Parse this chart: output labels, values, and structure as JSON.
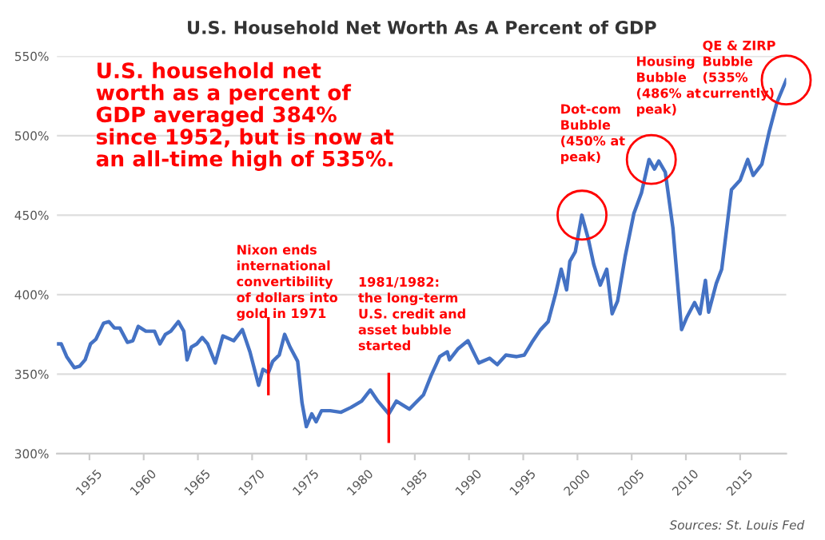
{
  "chart_data": {
    "type": "line",
    "title": "U.S. Household Net Worth As A Percent of GDP",
    "x": [
      1952.0,
      1952.4,
      1952.9,
      1953.6,
      1954.1,
      1954.6,
      1955.1,
      1955.6,
      1956.3,
      1956.8,
      1957.3,
      1957.8,
      1958.5,
      1959.0,
      1959.5,
      1960.2,
      1961.0,
      1961.5,
      1962.0,
      1962.5,
      1963.2,
      1963.7,
      1964.0,
      1964.4,
      1964.9,
      1965.4,
      1965.9,
      1966.6,
      1967.3,
      1968.3,
      1969.1,
      1969.8,
      1970.6,
      1971.0,
      1971.5,
      1971.9,
      1972.5,
      1973.0,
      1973.5,
      1974.2,
      1974.6,
      1975.0,
      1975.5,
      1975.9,
      1976.4,
      1977.2,
      1978.2,
      1979.1,
      1980.1,
      1980.9,
      1981.6,
      1982.6,
      1983.3,
      1984.5,
      1985.8,
      1986.5,
      1987.3,
      1988.0,
      1988.2,
      1989.0,
      1989.9,
      1990.9,
      1991.9,
      1992.6,
      1993.4,
      1994.4,
      1995.1,
      1995.8,
      1996.6,
      1997.3,
      1998.0,
      1998.5,
      1999.0,
      1999.3,
      1999.8,
      2000.4,
      2001.0,
      2001.5,
      2002.1,
      2002.7,
      2003.2,
      2003.7,
      2004.4,
      2005.2,
      2005.9,
      2006.6,
      2007.1,
      2007.5,
      2008.1,
      2008.8,
      2009.6,
      2010.1,
      2010.8,
      2011.3,
      2011.8,
      2012.1,
      2012.8,
      2013.3,
      2014.2,
      2015.0,
      2015.7,
      2016.2,
      2017.0,
      2017.7,
      2018.4,
      2019.25
    ],
    "series": [
      {
        "color": "#4472c4",
        "values": [
          369,
          369,
          361,
          354,
          355,
          359,
          369,
          372,
          382,
          383,
          379,
          379,
          370,
          371,
          380,
          377,
          377,
          369,
          375,
          377,
          383,
          377,
          359,
          367,
          369,
          373,
          369,
          357,
          374,
          371,
          378,
          364,
          343,
          353,
          351,
          358,
          362,
          375,
          367,
          358,
          332,
          317,
          325,
          320,
          327,
          327,
          326,
          329,
          333,
          340,
          333,
          325,
          333,
          328,
          337,
          349,
          361,
          364,
          359,
          366,
          371,
          357,
          360,
          356,
          362,
          361,
          362,
          370,
          378,
          383,
          401,
          416,
          403,
          421,
          427,
          450,
          435,
          419,
          406,
          416,
          388,
          396,
          424,
          451,
          464,
          485,
          479,
          484,
          477,
          442,
          378,
          386,
          395,
          388,
          409,
          389,
          407,
          416,
          466,
          472,
          485,
          475,
          482,
          503,
          521,
          535
        ]
      }
    ],
    "xlim": [
      1952,
      2019.25
    ],
    "ylim": [
      300,
      550
    ],
    "yticks": [
      {
        "value": 300,
        "label": "300%"
      },
      {
        "value": 350,
        "label": "350%"
      },
      {
        "value": 400,
        "label": "400%"
      },
      {
        "value": 450,
        "label": "450%"
      },
      {
        "value": 500,
        "label": "500%"
      },
      {
        "value": 550,
        "label": "550%"
      }
    ],
    "xticks": [
      1955,
      1960,
      1965,
      1970,
      1975,
      1980,
      1985,
      1990,
      1995,
      2000,
      2005,
      2010,
      2015
    ],
    "grid": "y",
    "legend": false,
    "line_style": "solid",
    "marker": "none",
    "ref_lines": [
      {
        "axis": "x",
        "value": 1971.5,
        "label": "Nixon ends\ninternational\nconvertibility\nof dollars into\ngold in 1971",
        "color": "#ff0000"
      },
      {
        "axis": "x",
        "value": 1982.6,
        "label": "1981/1982:\nthe long-term\nU.S. credit and\nasset bubble\nstarted",
        "color": "#ff0000"
      }
    ],
    "annotations": [
      "U.S. household net\nworth as a percent of\nGDP averaged 384%\nsince 1952, but is now at\nan all-time high of 535%.",
      "Dot-com\nBubble\n(450% at\npeak)",
      "Housing\nBubble\n(486% at\npeak)",
      "QE & ZIRP\nBubble\n(535%\ncurrently)",
      "Sources: St. Louis Fed"
    ]
  }
}
